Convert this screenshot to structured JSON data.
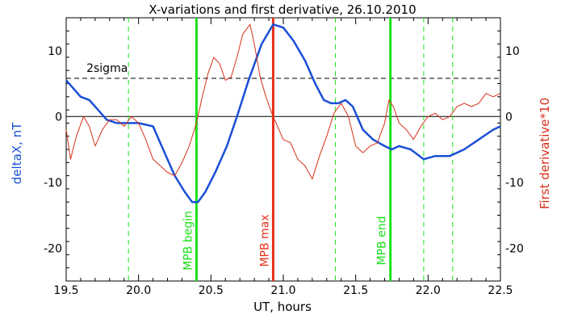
{
  "chart_data": {
    "type": "line",
    "title": "X-variations and first derivative, 26.10.2010",
    "xlabel": "UT, hours",
    "ylabel_left": "deltaX, nT",
    "ylabel_right": "First derivative*10",
    "xlim": [
      19.5,
      22.5
    ],
    "ylim": [
      -25,
      15
    ],
    "xticks": [
      19.5,
      20.0,
      20.5,
      21.0,
      21.5,
      22.0,
      22.5
    ],
    "xtick_labels": [
      "19.5",
      "20.0",
      "20.5",
      "21.0",
      "21.5",
      "22.0",
      "22.5"
    ],
    "yticks": [
      10,
      0,
      -10,
      -20
    ],
    "ytick_labels": [
      "10",
      "0",
      "-10",
      "-20"
    ],
    "sigma_level": 5.8,
    "sigma_label": "2sigma",
    "colors": {
      "deltaX": "#1a4fd6",
      "derivative": "#d6301a",
      "mpb_boundary": "#18e018",
      "mpb_max": "#e8301a",
      "axis": "#000000"
    },
    "series": [
      {
        "name": "deltaX, nT",
        "axis": "left",
        "x": [
          19.5,
          19.56,
          19.6,
          19.66,
          19.72,
          19.78,
          19.85,
          19.93,
          20.0,
          20.1,
          20.18,
          20.25,
          20.32,
          20.37,
          20.41,
          20.46,
          20.53,
          20.61,
          20.68,
          20.76,
          20.85,
          20.93,
          21.0,
          21.07,
          21.15,
          21.22,
          21.28,
          21.33,
          21.38,
          21.43,
          21.48,
          21.55,
          21.62,
          21.7,
          21.75,
          21.8,
          21.88,
          21.97,
          22.05,
          22.15,
          22.25,
          22.35,
          22.45,
          22.5
        ],
        "y": [
          5.5,
          4.0,
          3.0,
          2.5,
          1.0,
          -0.5,
          -1.0,
          -1.0,
          -1.0,
          -1.5,
          -5.5,
          -9.0,
          -11.5,
          -13.0,
          -13.0,
          -11.5,
          -8.5,
          -4.5,
          0.0,
          5.5,
          11.0,
          14.0,
          13.5,
          11.5,
          8.5,
          5.0,
          2.5,
          2.0,
          2.0,
          2.5,
          1.5,
          -2.0,
          -3.5,
          -4.5,
          -5.0,
          -4.5,
          -5.0,
          -6.5,
          -6.0,
          -6.0,
          -5.0,
          -3.5,
          -2.0,
          -1.5
        ]
      },
      {
        "name": "First derivative*10",
        "axis": "right",
        "x": [
          19.5,
          19.53,
          19.57,
          19.62,
          19.66,
          19.7,
          19.75,
          19.8,
          19.85,
          19.9,
          19.95,
          20.0,
          20.05,
          20.1,
          20.15,
          20.2,
          20.25,
          20.3,
          20.35,
          20.4,
          20.44,
          20.48,
          20.52,
          20.56,
          20.6,
          20.64,
          20.68,
          20.72,
          20.77,
          20.8,
          20.84,
          20.88,
          20.92,
          20.96,
          21.0,
          21.05,
          21.1,
          21.15,
          21.2,
          21.25,
          21.3,
          21.35,
          21.4,
          21.45,
          21.5,
          21.55,
          21.6,
          21.65,
          21.7,
          21.73,
          21.76,
          21.8,
          21.85,
          21.9,
          21.95,
          22.0,
          22.05,
          22.1,
          22.15,
          22.2,
          22.25,
          22.3,
          22.35,
          22.4,
          22.45,
          22.5
        ],
        "y": [
          -2.0,
          -6.5,
          -3.0,
          0.0,
          -1.5,
          -4.5,
          -2.0,
          -0.5,
          -0.5,
          -1.5,
          0.0,
          -1.0,
          -3.5,
          -6.5,
          -7.5,
          -8.5,
          -9.0,
          -7.0,
          -4.5,
          -1.0,
          3.0,
          6.5,
          9.0,
          8.0,
          5.5,
          6.0,
          9.0,
          12.5,
          14.0,
          11.0,
          6.0,
          3.0,
          0.5,
          -1.5,
          -3.5,
          -4.0,
          -6.5,
          -7.5,
          -9.5,
          -6.0,
          -3.0,
          0.5,
          2.0,
          0.0,
          -4.5,
          -5.5,
          -4.5,
          -4.0,
          -1.0,
          2.5,
          1.5,
          -1.0,
          -2.0,
          -3.5,
          -1.5,
          0.0,
          0.5,
          -0.5,
          0.0,
          1.5,
          2.0,
          1.5,
          2.0,
          3.5,
          3.0,
          3.5
        ]
      }
    ],
    "vertical_lines": [
      {
        "x": 19.93,
        "style": "dashed",
        "color_key": "mpb_boundary",
        "label": ""
      },
      {
        "x": 20.4,
        "style": "solid",
        "color_key": "mpb_boundary",
        "label": "MPB begin"
      },
      {
        "x": 20.93,
        "style": "solid",
        "color_key": "mpb_max",
        "label": "MPB max"
      },
      {
        "x": 21.36,
        "style": "dashed",
        "color_key": "mpb_boundary",
        "label": ""
      },
      {
        "x": 21.74,
        "style": "solid",
        "color_key": "mpb_boundary",
        "label": "MPB end"
      },
      {
        "x": 21.97,
        "style": "dashed",
        "color_key": "mpb_boundary",
        "label": ""
      },
      {
        "x": 22.17,
        "style": "dashed",
        "color_key": "mpb_boundary",
        "label": ""
      }
    ],
    "grid": false,
    "legend": "none"
  }
}
